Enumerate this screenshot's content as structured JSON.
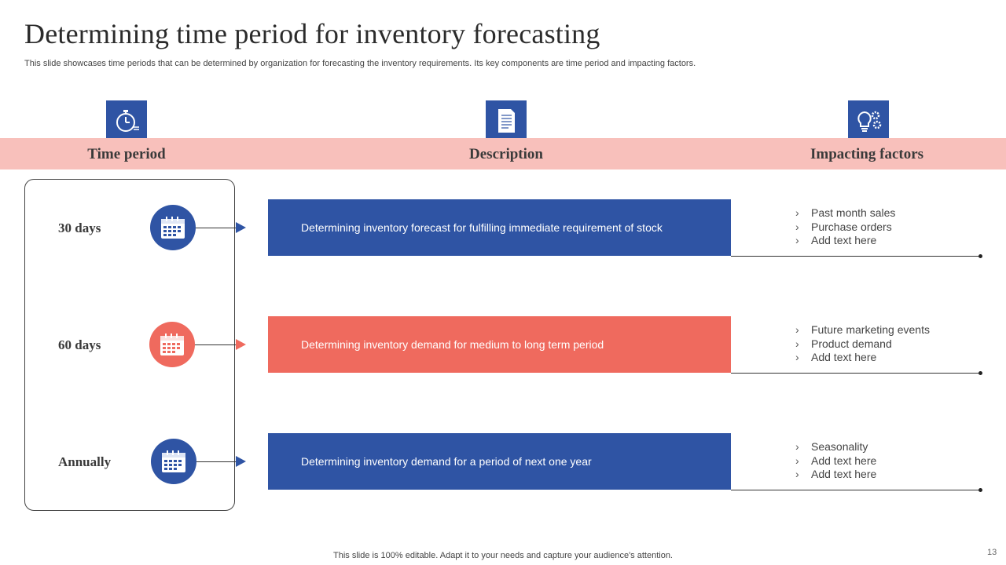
{
  "slide": {
    "title": "Determining time period for inventory forecasting",
    "subtitle": "This slide showcases time periods that can be determined by organization for forecasting the inventory requirements. Its key components are time period and impacting factors.",
    "footer": "This slide is 100% editable. Adapt it to your needs and capture your audience's attention.",
    "page_number": "13"
  },
  "header": {
    "columns": [
      {
        "label": "Time period",
        "icon": "stopwatch-icon"
      },
      {
        "label": "Description",
        "icon": "document-icon"
      },
      {
        "label": "Impacting factors",
        "icon": "lightbulb-gears-icon"
      }
    ]
  },
  "colors": {
    "blue": "#2f54a4",
    "red": "#ef6a5e",
    "band": "#f8c0bb"
  },
  "rows": [
    {
      "period": "30 days",
      "color": "blue",
      "icon": "calendar-icon",
      "description": "Determining inventory forecast for fulfilling immediate requirement of stock",
      "factors": [
        "Past month sales",
        "Purchase orders",
        "Add text here"
      ]
    },
    {
      "period": "60 days",
      "color": "red",
      "icon": "calendar-icon",
      "description": "Determining inventory demand for medium to long term period",
      "factors": [
        "Future marketing events",
        "Product demand",
        "Add text here"
      ]
    },
    {
      "period": "Annually",
      "color": "blue",
      "icon": "calendar-icon",
      "description": "Determining inventory demand for a period of next one year",
      "factors": [
        "Seasonality",
        "Add text here",
        "Add text here"
      ]
    }
  ]
}
